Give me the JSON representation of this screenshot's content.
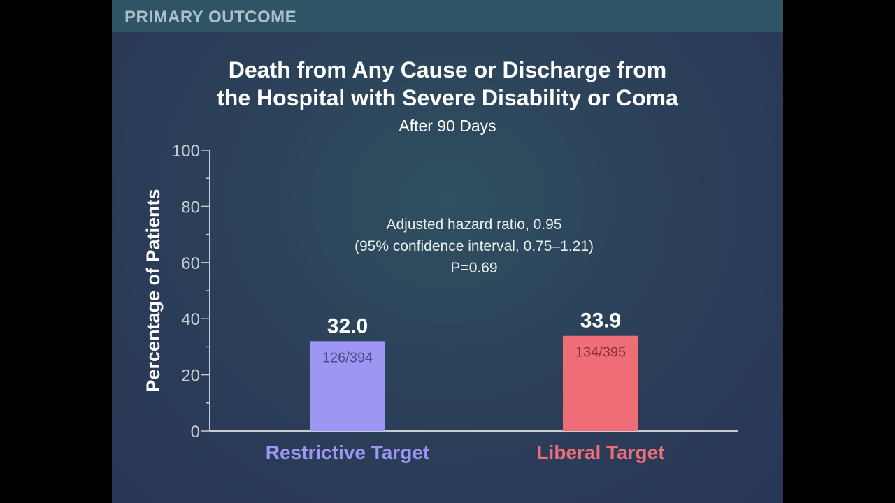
{
  "header": {
    "label": "PRIMARY OUTCOME"
  },
  "chart_data": {
    "type": "bar",
    "title": "Death from Any Cause or Discharge from the Hospital with Severe Disability or Coma",
    "title_lines": [
      "Death from Any Cause or Discharge from",
      "the Hospital with Severe Disability or Coma"
    ],
    "subtitle": "After 90 Days",
    "xlabel": "",
    "ylabel": "Percentage of Patients",
    "ylim": [
      0,
      100
    ],
    "yticks": [
      0,
      20,
      40,
      60,
      80,
      100
    ],
    "categories": [
      "Restrictive Target",
      "Liberal Target"
    ],
    "values": [
      32.0,
      33.9
    ],
    "value_labels": [
      "32.0",
      "33.9"
    ],
    "count_labels": [
      "126/394",
      "134/395"
    ],
    "colors": [
      "#9d96f2",
      "#ee6d77"
    ],
    "annotation": [
      "Adjusted hazard ratio, 0.95",
      "(95% confidence interval, 0.75–1.21)",
      "P=0.69"
    ],
    "grid": false
  }
}
